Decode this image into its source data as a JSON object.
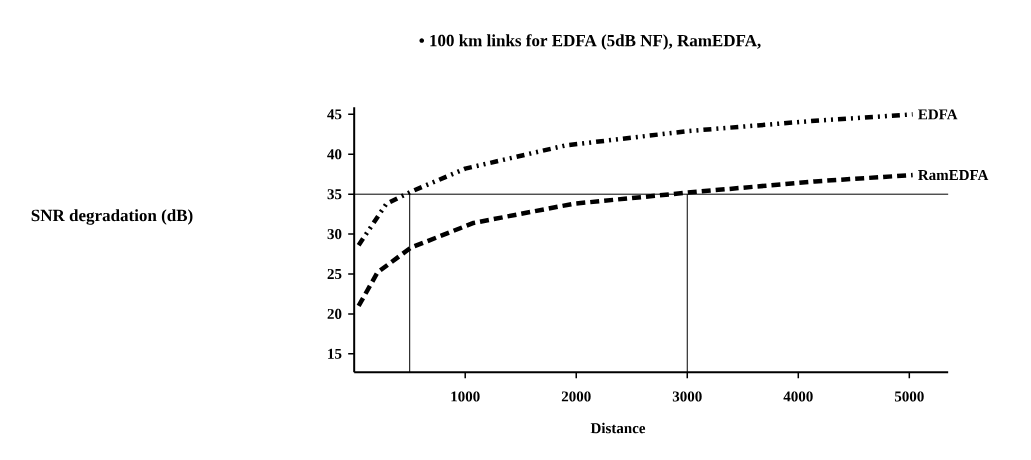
{
  "chart_data": {
    "type": "line",
    "title": "• 100 km links for EDFA (5dB NF), RamEDFA,",
    "xlabel": "Distance",
    "annotations": [
      "SNR degradation (dB)"
    ],
    "xlim": [
      0,
      5350
    ],
    "ylim": [
      12.7,
      45.9
    ],
    "xticks": [
      1000,
      2000,
      3000,
      4000,
      5000
    ],
    "yticks": [
      15,
      20,
      25,
      30,
      35,
      40,
      45
    ],
    "grid": false,
    "legend": false,
    "series": [
      {
        "name": "EDFA",
        "color": "#000000",
        "line_style": "dotted",
        "x": [
          40,
          290,
          510,
          1000,
          1900,
          3000,
          4150,
          5030
        ],
        "values": [
          28.6,
          33.8,
          35.3,
          38.2,
          41.1,
          42.9,
          44.2,
          45
        ]
      },
      {
        "name": "RamEDFA",
        "color": "#000000",
        "line_style": "dashed",
        "x": [
          40,
          210,
          510,
          1075,
          1975,
          3000,
          4150,
          5030
        ],
        "values": [
          21,
          25.2,
          28.3,
          31.4,
          33.8,
          35.2,
          36.6,
          37.4
        ]
      }
    ],
    "ref_lines": [
      {
        "axis": "y",
        "value": 35
      },
      {
        "axis": "x",
        "value": 500
      },
      {
        "axis": "x",
        "value": 3000
      }
    ]
  }
}
